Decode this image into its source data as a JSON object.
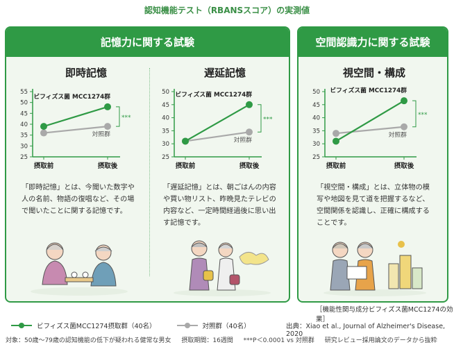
{
  "title": "認知機能テスト（RBANSスコア）の実測値",
  "panels": [
    {
      "header": "記憶力に関する試験"
    },
    {
      "header": "空間認識力に関する試験"
    }
  ],
  "colors": {
    "green": "#2f9a45",
    "gray": "#a9a9a9",
    "panel_bg": "#f1f7ef"
  },
  "chart_data": [
    {
      "type": "line",
      "title": "即時記憶",
      "x": [
        "摂取前",
        "摂取後"
      ],
      "ylim": [
        25,
        55
      ],
      "yticks": [
        25,
        30,
        35,
        40,
        45,
        50,
        55
      ],
      "series": [
        {
          "name": "ビフィズス菌 MCC1274群",
          "color": "#2f9a45",
          "values": [
            39,
            48
          ]
        },
        {
          "name": "対照群",
          "color": "#a9a9a9",
          "values": [
            36,
            39
          ]
        }
      ],
      "significance": "***",
      "description": "「即時記憶」とは、今聞いた数字や人の名前、物語の復唱など、その場で聞いたことに関する記憶です。"
    },
    {
      "type": "line",
      "title": "遅延記憶",
      "x": [
        "摂取前",
        "摂取後"
      ],
      "ylim": [
        25,
        50
      ],
      "yticks": [
        25,
        30,
        35,
        40,
        45,
        50
      ],
      "series": [
        {
          "name": "ビフィズス菌 MCC1274群",
          "color": "#2f9a45",
          "values": [
            31,
            45
          ]
        },
        {
          "name": "対照群",
          "color": "#a9a9a9",
          "values": [
            31,
            34.5
          ]
        }
      ],
      "significance": "***",
      "description": "「遅延記憶」とは、朝ごはんの内容や買い物リスト、昨晩見たテレビの内容など、一定時間経過後に思い出す記憶です。"
    },
    {
      "type": "line",
      "title": "視空間・構成",
      "x": [
        "摂取前",
        "摂取後"
      ],
      "ylim": [
        25,
        50
      ],
      "yticks": [
        25,
        30,
        35,
        40,
        45,
        50
      ],
      "series": [
        {
          "name": "ビフィズス菌 MCC1274群",
          "color": "#2f9a45",
          "values": [
            31,
            46.5
          ]
        },
        {
          "name": "対照群",
          "color": "#a9a9a9",
          "values": [
            34,
            36.5
          ]
        }
      ],
      "significance": "***",
      "description": "「視空間・構成」とは、立体物の模写や地図を見て道を把握するなど、空間関係を認識し、正確に構成することです。"
    }
  ],
  "source_note": "［機能性関与成分ビフィズス菌MCC1274の効果］",
  "legend": {
    "treatment": "ビフィズス菌MCC1274摂取群（40名）",
    "control": "対照群（40名）"
  },
  "citation": "出典：Xiao et al., Journal of Alzheimer's Disease, 2020",
  "footer": {
    "subjects": "対象：50歳～79歳の認知機能の低下が疑われる健常な男女",
    "period": "摂取期間：16週間",
    "pvalue": "***P＜0.0001 vs 対照群",
    "note": "研究レビュー採用論文のデータから抜粋"
  }
}
